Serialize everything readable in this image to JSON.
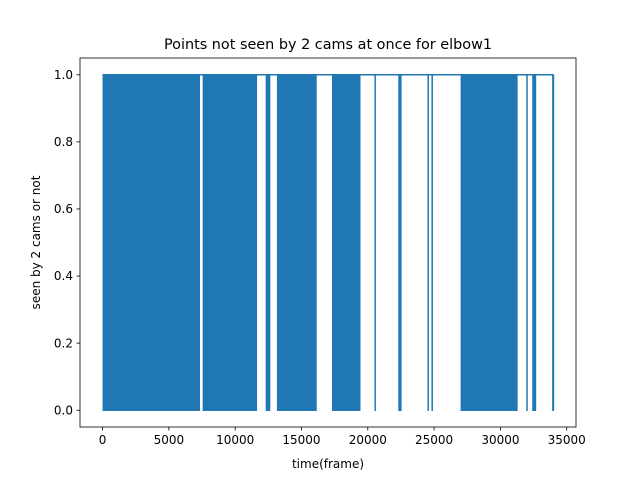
{
  "chart_data": {
    "type": "line",
    "title": "Points not seen by 2 cams at once for elbow1",
    "xlabel": "time(frame)",
    "ylabel": "seen by 2 cams or not",
    "xlim": [
      -1700,
      35700
    ],
    "ylim": [
      -0.05,
      1.05
    ],
    "x_ticks": [
      0,
      5000,
      10000,
      15000,
      20000,
      25000,
      30000,
      35000
    ],
    "x_tick_labels": [
      "0",
      "5000",
      "10000",
      "15000",
      "20000",
      "25000",
      "30000",
      "35000"
    ],
    "y_ticks": [
      0.0,
      0.2,
      0.4,
      0.6,
      0.8,
      1.0
    ],
    "y_tick_labels": [
      "0.0",
      "0.2",
      "0.4",
      "0.6",
      "0.8",
      "1.0"
    ],
    "grid": false,
    "line_color": "#1f77b4",
    "series": [
      {
        "values_domain": [
          0,
          1
        ],
        "baseline_value": 1,
        "x_end": 34000,
        "oscillating_ranges": [
          [
            0,
            7350
          ],
          [
            7550,
            11650
          ],
          [
            12300,
            12650
          ],
          [
            13150,
            16150
          ],
          [
            17300,
            19450
          ],
          [
            20500,
            20600
          ],
          [
            22300,
            22550
          ],
          [
            24500,
            24600
          ],
          [
            24800,
            24900
          ],
          [
            27000,
            31300
          ],
          [
            31950,
            32050
          ],
          [
            32400,
            32700
          ],
          [
            33900,
            34000
          ]
        ]
      }
    ]
  }
}
